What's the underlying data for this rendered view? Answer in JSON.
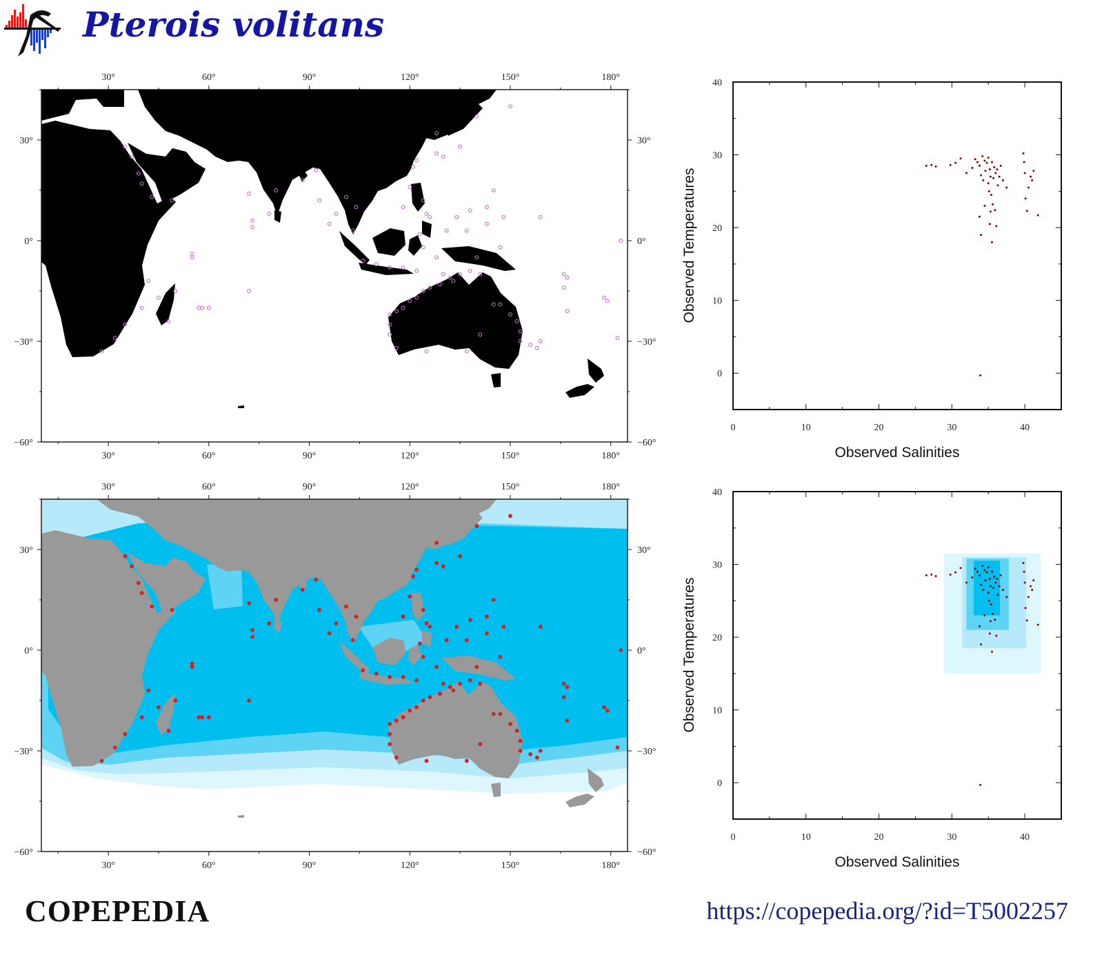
{
  "header": {
    "title": "Pterois volitans",
    "logo_icon": "copepedia-copepod-logo-icon"
  },
  "footer": {
    "brand": "COPEPEDIA",
    "url": "https://copepedia.org/?id=T5002257"
  },
  "colors": {
    "title": "#1515a6",
    "occurrence_map1": "#c46fd0",
    "occurrence_map2": "#d42020",
    "land_map1": "#000000",
    "land_map2": "#999999",
    "ocean_core": "#00bfef",
    "ocean_mid": "#5fd3f3",
    "ocean_outer": "#b6eafa",
    "ocean_edge": "#def6fd",
    "ts_points": "#8b0000"
  },
  "chart_data": [
    {
      "type": "scatter",
      "name": "occurrence-map-black",
      "xlabel": "",
      "ylabel": "",
      "xlim": [
        10,
        185
      ],
      "ylim": [
        -60,
        45
      ],
      "x_ticks": [
        "30°",
        "60°",
        "90°",
        "120°",
        "150°",
        "180°"
      ],
      "y_ticks": [
        "30°",
        "0°",
        "-30°",
        "-60°"
      ],
      "grid": false,
      "land": "black",
      "points": [
        [
          150,
          40
        ],
        [
          140,
          37
        ],
        [
          135,
          28
        ],
        [
          128,
          26
        ],
        [
          128,
          32
        ],
        [
          130,
          25
        ],
        [
          122,
          24
        ],
        [
          121,
          22
        ],
        [
          124,
          12
        ],
        [
          125,
          8
        ],
        [
          120,
          16
        ],
        [
          118,
          10
        ],
        [
          126,
          7
        ],
        [
          123,
          2
        ],
        [
          124,
          -2
        ],
        [
          128,
          -5
        ],
        [
          131,
          3
        ],
        [
          134,
          7
        ],
        [
          137,
          3
        ],
        [
          138,
          9
        ],
        [
          145,
          15
        ],
        [
          143,
          10
        ],
        [
          148,
          7
        ],
        [
          159,
          7
        ],
        [
          143,
          5
        ],
        [
          147,
          -2
        ],
        [
          140,
          -5
        ],
        [
          141,
          -10
        ],
        [
          138,
          -9
        ],
        [
          135,
          -10
        ],
        [
          132,
          -11
        ],
        [
          130,
          -10
        ],
        [
          133,
          -12
        ],
        [
          129,
          -13
        ],
        [
          126,
          -14
        ],
        [
          124,
          -15
        ],
        [
          122,
          -17
        ],
        [
          120,
          -18
        ],
        [
          118,
          -20
        ],
        [
          116,
          -21
        ],
        [
          114,
          -22
        ],
        [
          114,
          -25
        ],
        [
          114,
          -28
        ],
        [
          116,
          -32
        ],
        [
          125,
          -33
        ],
        [
          137,
          -33
        ],
        [
          141,
          -28
        ],
        [
          145,
          -19
        ],
        [
          147,
          -19
        ],
        [
          150,
          -22
        ],
        [
          152,
          -24
        ],
        [
          153,
          -27
        ],
        [
          153,
          -30
        ],
        [
          156,
          -31
        ],
        [
          159,
          -30
        ],
        [
          158,
          -32
        ],
        [
          167,
          -11
        ],
        [
          166,
          -10
        ],
        [
          166,
          -14
        ],
        [
          178,
          -17
        ],
        [
          179,
          -18
        ],
        [
          182,
          -29
        ],
        [
          183,
          0
        ],
        [
          167,
          -21
        ],
        [
          39,
          20
        ],
        [
          37,
          25
        ],
        [
          35,
          28
        ],
        [
          40,
          17
        ],
        [
          43,
          13
        ],
        [
          49,
          12
        ],
        [
          55,
          -4
        ],
        [
          55,
          -5
        ],
        [
          50,
          -15
        ],
        [
          45,
          -17
        ],
        [
          48,
          -24
        ],
        [
          40,
          -20
        ],
        [
          42,
          -12
        ],
        [
          35,
          -25
        ],
        [
          32,
          -29
        ],
        [
          28,
          -33
        ],
        [
          57,
          -20
        ],
        [
          60,
          -20
        ],
        [
          58,
          -20
        ],
        [
          73,
          4
        ],
        [
          73,
          6
        ],
        [
          72,
          14
        ],
        [
          72,
          -15
        ],
        [
          78,
          8
        ],
        [
          80,
          15
        ],
        [
          88,
          18
        ],
        [
          92,
          21
        ],
        [
          93,
          12
        ],
        [
          96,
          5
        ],
        [
          98,
          8
        ],
        [
          101,
          13
        ],
        [
          104,
          10
        ],
        [
          103,
          3
        ],
        [
          106,
          -6
        ],
        [
          110,
          -7
        ],
        [
          114,
          -8
        ],
        [
          118,
          -8
        ],
        [
          122,
          -9
        ]
      ]
    },
    {
      "type": "scatter",
      "name": "occurrence-map-ocean-climatology",
      "xlabel": "",
      "ylabel": "",
      "xlim": [
        10,
        185
      ],
      "ylim": [
        -60,
        45
      ],
      "x_ticks": [
        "30°",
        "60°",
        "90°",
        "120°",
        "150°",
        "180°"
      ],
      "y_ticks": [
        "30°",
        "0°",
        "-30°",
        "-60°"
      ],
      "grid": false,
      "land": "grey",
      "shading": "ocean temperature bands (light cyan to deep cyan)",
      "points_same_as": "occurrence-map-black"
    },
    {
      "type": "scatter",
      "name": "ts-diagram-1",
      "xlabel": "Observed Salinities",
      "ylabel": "Observed Temperatures",
      "xlim": [
        0,
        45
      ],
      "ylim": [
        -5,
        40
      ],
      "x_ticks": [
        "0",
        "10",
        "20",
        "30",
        "40"
      ],
      "y_ticks": [
        "0",
        "10",
        "20",
        "30",
        "40"
      ],
      "grid": false,
      "points": [
        [
          26.5,
          28.5
        ],
        [
          27.2,
          28.6
        ],
        [
          27.8,
          28.4
        ],
        [
          29.8,
          28.6
        ],
        [
          30.5,
          28.9
        ],
        [
          31.2,
          29.5
        ],
        [
          32.0,
          27.5
        ],
        [
          32.8,
          28.2
        ],
        [
          33.2,
          29.4
        ],
        [
          33.5,
          29.0
        ],
        [
          33.8,
          28.5
        ],
        [
          34.0,
          27.2
        ],
        [
          34.2,
          29.8
        ],
        [
          34.3,
          26.5
        ],
        [
          34.5,
          29.2
        ],
        [
          34.6,
          27.8
        ],
        [
          34.8,
          28.9
        ],
        [
          35.0,
          26.1
        ],
        [
          35.0,
          29.6
        ],
        [
          35.1,
          25.0
        ],
        [
          35.2,
          28.0
        ],
        [
          35.3,
          27.0
        ],
        [
          35.4,
          24.5
        ],
        [
          35.5,
          29.0
        ],
        [
          35.6,
          23.2
        ],
        [
          35.7,
          26.8
        ],
        [
          35.8,
          28.3
        ],
        [
          35.9,
          22.4
        ],
        [
          36.0,
          27.5
        ],
        [
          36.1,
          20.2
        ],
        [
          36.2,
          28.0
        ],
        [
          36.3,
          25.8
        ],
        [
          36.5,
          27.0
        ],
        [
          36.7,
          28.5
        ],
        [
          37.0,
          26.5
        ],
        [
          37.5,
          25.5
        ],
        [
          33.8,
          21.5
        ],
        [
          34.0,
          19.0
        ],
        [
          35.2,
          20.5
        ],
        [
          35.5,
          18.0
        ],
        [
          35.3,
          22.2
        ],
        [
          34.5,
          23.0
        ],
        [
          39.8,
          30.2
        ],
        [
          39.9,
          29.0
        ],
        [
          40.0,
          27.5
        ],
        [
          40.1,
          24.0
        ],
        [
          40.3,
          22.3
        ],
        [
          40.5,
          25.5
        ],
        [
          40.8,
          27.0
        ],
        [
          41.0,
          26.5
        ],
        [
          41.2,
          27.8
        ],
        [
          41.8,
          21.7
        ],
        [
          33.9,
          -0.3
        ]
      ]
    },
    {
      "type": "scatter",
      "name": "ts-diagram-2",
      "xlabel": "Observed Salinities",
      "ylabel": "Observed Temperatures",
      "xlim": [
        0,
        45
      ],
      "ylim": [
        -5,
        40
      ],
      "x_ticks": [
        "0",
        "10",
        "20",
        "30",
        "40"
      ],
      "y_ticks": [
        "0",
        "10",
        "20",
        "30",
        "40"
      ],
      "grid": false,
      "envelopes": [
        {
          "sal": [
            28.9,
            42.2
          ],
          "temp": [
            15.0,
            31.5
          ],
          "color": "#def6fd"
        },
        {
          "sal": [
            31.4,
            40.2
          ],
          "temp": [
            18.5,
            31.0
          ],
          "color": "#b6eafa"
        },
        {
          "sal": [
            32.0,
            37.8
          ],
          "temp": [
            21.0,
            30.8
          ],
          "color": "#5fd3f3"
        },
        {
          "sal": [
            33.0,
            36.6
          ],
          "temp": [
            23.0,
            30.5
          ],
          "color": "#00bfef"
        }
      ],
      "points_same_as": "ts-diagram-1"
    }
  ]
}
